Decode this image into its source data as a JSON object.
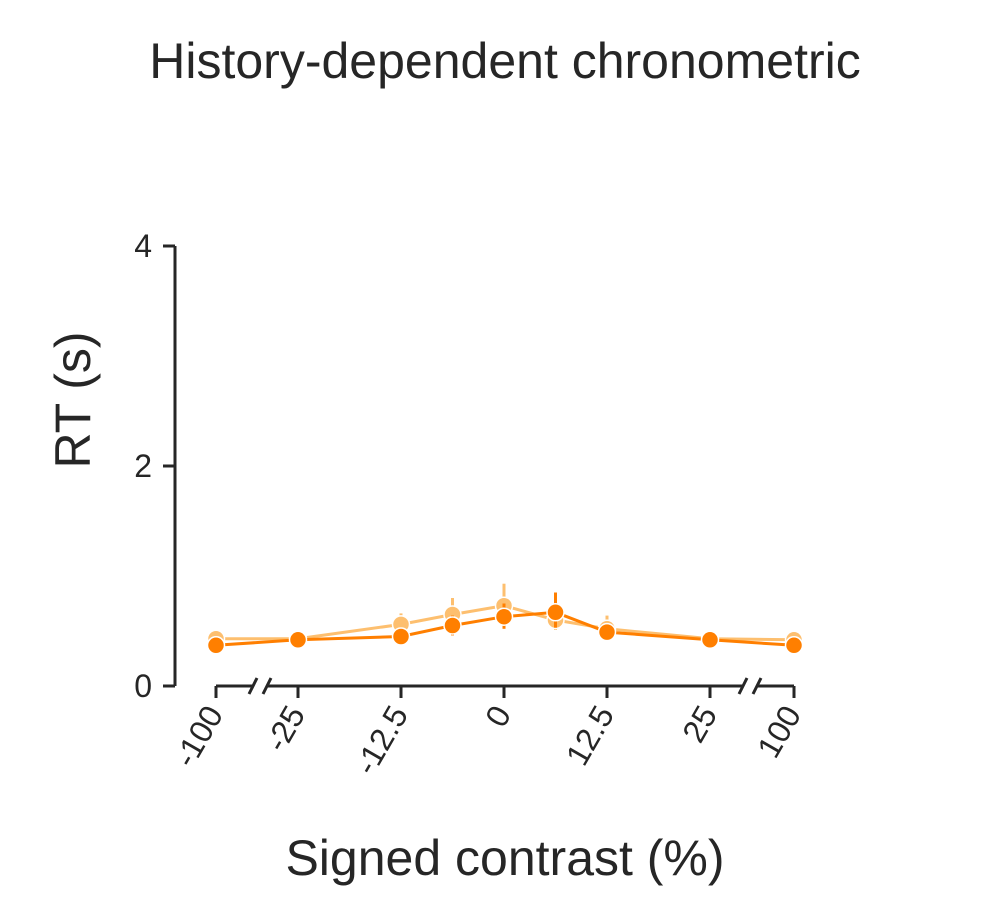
{
  "chart_data": {
    "type": "line",
    "title": "History-dependent chronometric",
    "xlabel": "Signed contrast (%)",
    "ylabel": "RT (s)",
    "x": [
      -100,
      -25,
      -12.5,
      -6.25,
      0,
      6.25,
      12.5,
      25,
      100
    ],
    "x_tick_labels": [
      "-100",
      "-25",
      "-12.5",
      "0",
      "12.5",
      "25",
      "100"
    ],
    "x_tick_values": [
      -100,
      -25,
      -12.5,
      0,
      12.5,
      25,
      100
    ],
    "y_ticks": [
      0,
      2,
      4
    ],
    "ylim": [
      0,
      4
    ],
    "grid": false,
    "legend": "none",
    "series": [
      {
        "color": "#fdbf6f",
        "values": [
          0.43,
          0.43,
          0.56,
          0.65,
          0.73,
          0.6,
          0.52,
          0.43,
          0.42
        ],
        "err_low": [
          0.38,
          0.39,
          0.47,
          0.52,
          0.56,
          0.51,
          0.42,
          0.39,
          0.37
        ],
        "err_high": [
          0.48,
          0.47,
          0.66,
          0.8,
          0.93,
          0.72,
          0.64,
          0.48,
          0.47
        ]
      },
      {
        "color": "#ff7f00",
        "values": [
          0.37,
          0.42,
          0.45,
          0.55,
          0.63,
          0.67,
          0.49,
          0.42,
          0.37
        ],
        "err_low": [
          0.33,
          0.38,
          0.4,
          0.46,
          0.52,
          0.53,
          0.43,
          0.38,
          0.33
        ],
        "err_high": [
          0.41,
          0.46,
          0.52,
          0.64,
          0.75,
          0.85,
          0.56,
          0.46,
          0.42
        ]
      }
    ]
  }
}
